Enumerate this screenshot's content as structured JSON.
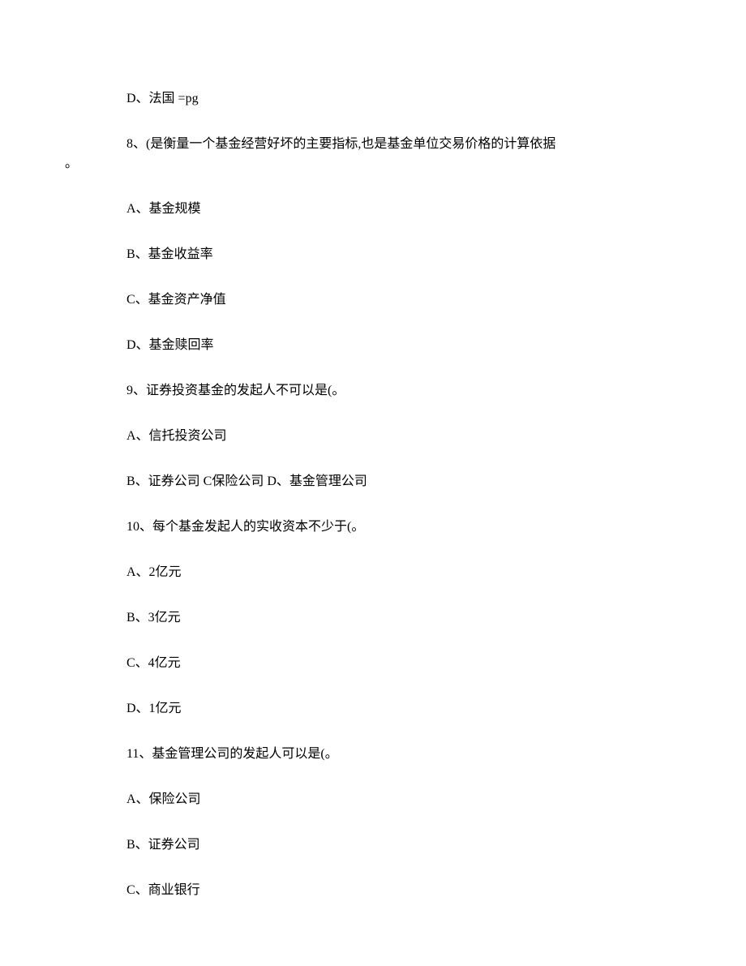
{
  "lines": {
    "l1": "D、法国 =pg",
    "l2": "8、(是衡量一个基金经营好坏的主要指标,也是基金单位交易价格的计算依据",
    "l2b": "。",
    "l3": "A、基金规模",
    "l4": "B、基金收益率",
    "l5": "C、基金资产净值",
    "l6": "D、基金赎回率",
    "l7": "9、证券投资基金的发起人不可以是(。",
    "l8": "A、信托投资公司",
    "l9": "B、证券公司 C保险公司 D、基金管理公司",
    "l10": "10、每个基金发起人的实收资本不少于(。",
    "l11": "A、2亿元",
    "l12": "B、3亿元",
    "l13": "C、4亿元",
    "l14": "D、1亿元",
    "l15": "11、基金管理公司的发起人可以是(。",
    "l16": "A、保险公司",
    "l17": "B、证券公司",
    "l18": "C、商业银行"
  }
}
